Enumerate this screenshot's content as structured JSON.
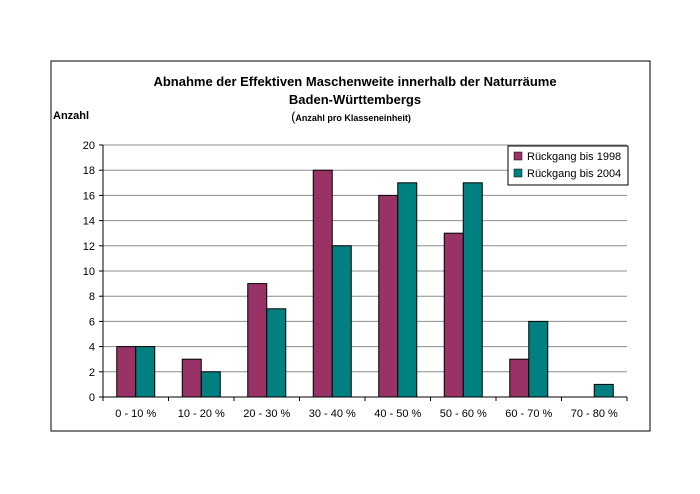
{
  "chart_data": {
    "type": "bar",
    "title_line1": "Abnahme der Effektiven Maschenweite innerhalb der Naturräume",
    "title_line2": "Baden-Württembergs",
    "subtitle_paren": "(",
    "subtitle": "Anzahl pro Klasseneinheit)",
    "ylabel": "Anzahl",
    "xlabel": "",
    "ylim": [
      0,
      20
    ],
    "yticks": [
      0,
      2,
      4,
      6,
      8,
      10,
      12,
      14,
      16,
      18,
      20
    ],
    "grid": true,
    "legend_position": "top-right",
    "categories": [
      "0 - 10 %",
      "10 - 20 %",
      "20 - 30 %",
      "30 - 40 %",
      "40 - 50 %",
      "50 - 60 %",
      "60 - 70 %",
      "70 - 80 %"
    ],
    "series": [
      {
        "name": "Rückgang bis 1998",
        "color": "#993366",
        "values": [
          4,
          3,
          9,
          18,
          16,
          13,
          3,
          0
        ]
      },
      {
        "name": "Rückgang bis 2004",
        "color": "#008080",
        "values": [
          4,
          2,
          7,
          12,
          17,
          17,
          6,
          1
        ]
      }
    ]
  }
}
